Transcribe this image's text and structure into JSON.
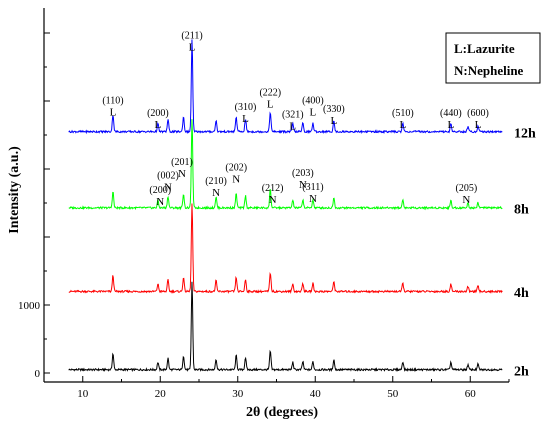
{
  "chart_data": {
    "type": "line",
    "xlabel": "2θ (degrees)",
    "ylabel": "Intensity (a.u.)",
    "xlim": [
      5,
      65
    ],
    "x_ticks": [
      10,
      20,
      30,
      40,
      50,
      60
    ],
    "y_ticks": [
      {
        "value": 0,
        "label": "0"
      },
      {
        "value": 1000,
        "label": "1000"
      }
    ],
    "ylim": [
      0,
      5000
    ],
    "legend": {
      "placement": "top-right",
      "entries": [
        "L:Lazurite",
        "N:Nepheline"
      ]
    },
    "series": [
      {
        "name": "2h",
        "color": "#000000",
        "offset": 0,
        "scale": 1.0
      },
      {
        "name": "4h",
        "color": "#ff0000",
        "offset": 1150,
        "scale": 1.0
      },
      {
        "name": "8h",
        "color": "#00ff00",
        "offset": 2380,
        "scale": 1.0
      },
      {
        "name": "12h",
        "color": "#0000ff",
        "offset": 3500,
        "scale": 1.05
      }
    ],
    "peaks": [
      {
        "x": 13.9,
        "h": 240
      },
      {
        "x": 19.7,
        "h": 110
      },
      {
        "x": 21.0,
        "h": 170
      },
      {
        "x": 23.0,
        "h": 210
      },
      {
        "x": 24.1,
        "h": 1300
      },
      {
        "x": 27.2,
        "h": 160
      },
      {
        "x": 29.8,
        "h": 210
      },
      {
        "x": 31.0,
        "h": 180
      },
      {
        "x": 34.2,
        "h": 280
      },
      {
        "x": 37.1,
        "h": 110
      },
      {
        "x": 38.4,
        "h": 120
      },
      {
        "x": 39.7,
        "h": 120
      },
      {
        "x": 42.4,
        "h": 150
      },
      {
        "x": 51.3,
        "h": 120
      },
      {
        "x": 57.5,
        "h": 110
      },
      {
        "x": 59.7,
        "h": 70
      },
      {
        "x": 61.0,
        "h": 80
      }
    ],
    "annotations_12h": [
      {
        "hkl": "(110)",
        "letter": "L",
        "x": 13.9,
        "y": 3960
      },
      {
        "hkl": "(200)",
        "letter": "L",
        "x": 19.7,
        "y": 3780
      },
      {
        "hkl": "(211)",
        "letter": "L",
        "x": 24.1,
        "y": 4920
      },
      {
        "hkl": "(310)",
        "letter": "L",
        "x": 31.0,
        "y": 3870
      },
      {
        "hkl": "(222)",
        "letter": "L",
        "x": 34.2,
        "y": 4080
      },
      {
        "hkl": "(321)",
        "letter": "L",
        "x": 37.1,
        "y": 3760
      },
      {
        "hkl": "(400)",
        "letter": "L",
        "x": 39.7,
        "y": 3960
      },
      {
        "hkl": "(330)",
        "letter": "L",
        "x": 42.4,
        "y": 3840
      },
      {
        "hkl": "(510)",
        "letter": "L",
        "x": 51.3,
        "y": 3780
      },
      {
        "hkl": "(440)",
        "letter": "L",
        "x": 57.5,
        "y": 3780
      },
      {
        "hkl": "(600)",
        "letter": "L",
        "x": 61.0,
        "y": 3780
      }
    ],
    "annotations_8h": [
      {
        "hkl": "(200)",
        "letter": "N",
        "x": 20.0,
        "y": 2650
      },
      {
        "hkl": "(002)",
        "letter": "N",
        "x": 21.0,
        "y": 2860
      },
      {
        "hkl": "(201)",
        "letter": "N",
        "x": 22.8,
        "y": 3060
      },
      {
        "hkl": "(210)",
        "letter": "N",
        "x": 27.2,
        "y": 2780
      },
      {
        "hkl": "(202)",
        "letter": "N",
        "x": 29.8,
        "y": 2980
      },
      {
        "hkl": "(212)",
        "letter": "N",
        "x": 34.5,
        "y": 2680
      },
      {
        "hkl": "(203)",
        "letter": "N",
        "x": 38.4,
        "y": 2900
      },
      {
        "hkl": "(311)",
        "letter": "N",
        "x": 39.7,
        "y": 2690
      },
      {
        "hkl": "(205)",
        "letter": "N",
        "x": 59.5,
        "y": 2680
      }
    ]
  }
}
